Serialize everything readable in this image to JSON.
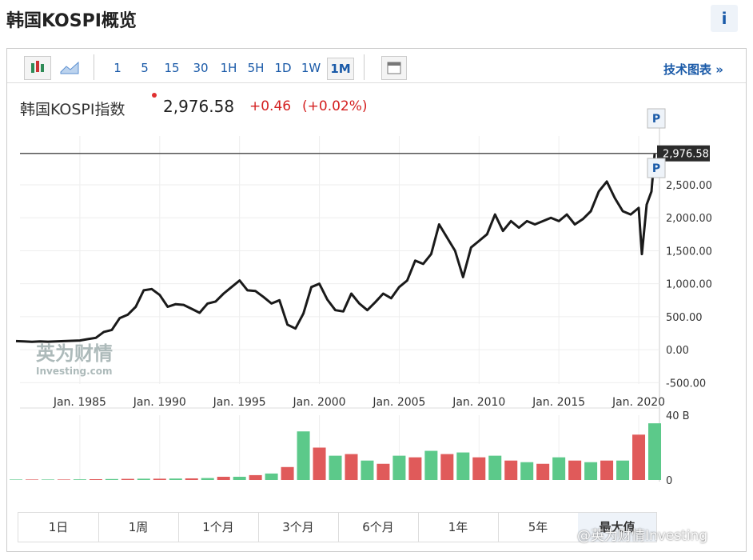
{
  "page_title": "韩国KOSPI概览",
  "info": "i",
  "toolbar": {
    "intervals": [
      "1",
      "5",
      "15",
      "30",
      "1H",
      "5H",
      "1D",
      "1W",
      "1M"
    ],
    "link": "技术图表 »"
  },
  "quote": {
    "name": "韩国KOSPI指数",
    "price": "2,976.58",
    "change": "+0.46",
    "change_pct": "(+0.02%)"
  },
  "chart_data": {
    "type": "line",
    "x": [
      1981.0,
      1981.5,
      1982.0,
      1982.5,
      1983.0,
      1983.5,
      1984.0,
      1984.5,
      1985.0,
      1985.5,
      1986.0,
      1986.5,
      1987.0,
      1987.5,
      1988.0,
      1988.5,
      1989.0,
      1989.5,
      1990.0,
      1990.5,
      1991.0,
      1991.5,
      1992.0,
      1992.5,
      1993.0,
      1993.5,
      1994.0,
      1994.5,
      1995.0,
      1995.5,
      1996.0,
      1996.5,
      1997.0,
      1997.5,
      1998.0,
      1998.5,
      1999.0,
      1999.5,
      2000.0,
      2000.5,
      2001.0,
      2001.5,
      2002.0,
      2002.5,
      2003.0,
      2003.5,
      2004.0,
      2004.5,
      2005.0,
      2005.5,
      2006.0,
      2006.5,
      2007.0,
      2007.5,
      2008.0,
      2008.5,
      2009.0,
      2009.5,
      2010.0,
      2010.5,
      2011.0,
      2011.5,
      2012.0,
      2012.5,
      2013.0,
      2013.5,
      2014.0,
      2014.5,
      2015.0,
      2015.5,
      2016.0,
      2016.5,
      2017.0,
      2017.5,
      2018.0,
      2018.5,
      2019.0,
      2019.5,
      2020.0,
      2020.2,
      2020.5,
      2020.8,
      2021.0
    ],
    "series": [
      {
        "color": "#1a1a1a",
        "values": [
          130,
          125,
          120,
          125,
          122,
          125,
          130,
          135,
          140,
          160,
          180,
          270,
          300,
          480,
          530,
          650,
          900,
          920,
          830,
          650,
          690,
          680,
          620,
          560,
          700,
          730,
          850,
          950,
          1050,
          900,
          890,
          800,
          700,
          750,
          380,
          320,
          550,
          950,
          1000,
          760,
          600,
          580,
          850,
          700,
          600,
          720,
          850,
          780,
          950,
          1050,
          1350,
          1300,
          1450,
          1900,
          1700,
          1500,
          1100,
          1550,
          1650,
          1750,
          2050,
          1800,
          1950,
          1850,
          1950,
          1900,
          1950,
          2000,
          1950,
          2050,
          1900,
          1980,
          2100,
          2400,
          2550,
          2300,
          2100,
          2050,
          2150,
          1450,
          2200,
          2400,
          2976.58
        ]
      }
    ],
    "xlim": [
      1981.25,
      2021.3
    ],
    "xticks": [
      {
        "value": 1985,
        "label": "Jan. 1985"
      },
      {
        "value": 1990,
        "label": "Jan. 1990"
      },
      {
        "value": 1995,
        "label": "Jan. 1995"
      },
      {
        "value": 2000,
        "label": "Jan. 2000"
      },
      {
        "value": 2005,
        "label": "Jan. 2005"
      },
      {
        "value": 2010,
        "label": "Jan. 2010"
      },
      {
        "value": 2015,
        "label": "Jan. 2015"
      },
      {
        "value": 2020,
        "label": "Jan. 2020"
      }
    ],
    "ylim": [
      -520,
      3240
    ],
    "yticks": [
      {
        "value": -500,
        "label": "-500.00"
      },
      {
        "value": 0,
        "label": "0.00"
      },
      {
        "value": 500,
        "label": "500.00"
      },
      {
        "value": 1000,
        "label": "1,000.00"
      },
      {
        "value": 1500,
        "label": "1,500.00"
      },
      {
        "value": 2000,
        "label": "2,000.00"
      },
      {
        "value": 2500,
        "label": "2,500.00"
      }
    ],
    "last_price": {
      "value": 2976.58,
      "label": "2,976.58"
    },
    "marker": "P",
    "grid": true,
    "volume": {
      "x": [
        1981,
        1982,
        1983,
        1984,
        1985,
        1986,
        1987,
        1988,
        1989,
        1990,
        1991,
        1992,
        1993,
        1994,
        1995,
        1996,
        1997,
        1998,
        1999,
        2000,
        2001,
        2002,
        2003,
        2004,
        2005,
        2006,
        2007,
        2008,
        2009,
        2010,
        2011,
        2012,
        2013,
        2014,
        2015,
        2016,
        2017,
        2018,
        2019,
        2020,
        2021
      ],
      "values": [
        0.3,
        0.3,
        0.3,
        0.3,
        0.4,
        0.5,
        0.6,
        0.7,
        0.8,
        0.8,
        0.9,
        1,
        1.2,
        2,
        2,
        3,
        4,
        8,
        30,
        20,
        15,
        16,
        12,
        10,
        15,
        14,
        18,
        16,
        17,
        14,
        15,
        12,
        11,
        10,
        14,
        12,
        11,
        12,
        12,
        28,
        35
      ],
      "colors": [
        "#5cc98a",
        "#e05a5a"
      ],
      "ylim": [
        0,
        40
      ],
      "yticks": [
        0,
        {
          "value": 40,
          "label": "40 B"
        }
      ]
    }
  },
  "watermark": {
    "cn": "英为财情",
    "en": "Investing.com"
  },
  "ranges": [
    "1日",
    "1周",
    "1个月",
    "3个月",
    "6个月",
    "1年",
    "5年",
    "最大值"
  ],
  "credit": "@英为财情Investing"
}
